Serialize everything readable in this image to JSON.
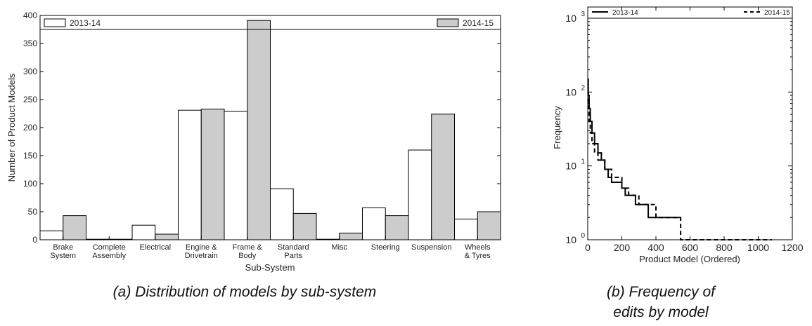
{
  "captions": {
    "a": "(a) Distribution of models by sub-system",
    "b_line1": "(b) Frequency of",
    "b_line2": "edits by model"
  },
  "chart_data": [
    {
      "type": "bar",
      "xlabel": "Sub-System",
      "ylabel": "Number of Product Models",
      "ylim": [
        0,
        400
      ],
      "yticks": [
        0,
        50,
        100,
        150,
        200,
        250,
        300,
        350,
        400
      ],
      "categories": [
        [
          "Brake",
          "System"
        ],
        [
          "Complete",
          "Assembly"
        ],
        [
          "Electrical"
        ],
        [
          "Engine &",
          "Drivetrain"
        ],
        [
          "Frame &",
          "Body"
        ],
        [
          "Standard",
          "Parts"
        ],
        [
          "Misc"
        ],
        [
          "Steering"
        ],
        [
          "Suspension"
        ],
        [
          "Wheels",
          "& Tyres"
        ]
      ],
      "series": [
        {
          "name": "2013-14",
          "color": "#ffffff",
          "values": [
            16,
            1,
            26,
            231,
            229,
            91,
            1,
            57,
            160,
            37
          ]
        },
        {
          "name": "2014-15",
          "color": "#cccccc",
          "values": [
            43,
            1,
            10,
            233,
            391,
            47,
            12,
            43,
            224,
            50
          ]
        }
      ],
      "legend": "top"
    },
    {
      "type": "line",
      "xlabel": "Product Model (Ordered)",
      "ylabel": "Frequency",
      "yscale": "log",
      "xlim": [
        0,
        1200
      ],
      "xticks": [
        0,
        200,
        400,
        600,
        800,
        1000,
        1200
      ],
      "ylim": [
        1,
        1000
      ],
      "yticks": [
        {
          "value": 1,
          "base": "10",
          "exp": "0"
        },
        {
          "value": 10,
          "base": "10",
          "exp": "1"
        },
        {
          "value": 100,
          "base": "10",
          "exp": "2"
        },
        {
          "value": 1000,
          "base": "10",
          "exp": "3"
        }
      ],
      "series": [
        {
          "name": "2013-14",
          "style": "solid",
          "x": [
            0,
            3,
            8,
            15,
            25,
            40,
            60,
            80,
            100,
            120,
            140,
            160,
            200,
            220,
            280,
            340,
            355,
            540
          ],
          "y": [
            150,
            90,
            60,
            40,
            28,
            20,
            15,
            12,
            9,
            7,
            6,
            6,
            5,
            4,
            3,
            3,
            2,
            2
          ]
        },
        {
          "name": "2014-15",
          "style": "dashed",
          "x": [
            0,
            3,
            8,
            15,
            25,
            40,
            60,
            100,
            140,
            200,
            240,
            300,
            380,
            400,
            540,
            545,
            1080
          ],
          "y": [
            100,
            60,
            40,
            28,
            20,
            15,
            12,
            9,
            7,
            5,
            4,
            3,
            3,
            2,
            2,
            1,
            1
          ]
        }
      ],
      "legend": "top"
    }
  ]
}
